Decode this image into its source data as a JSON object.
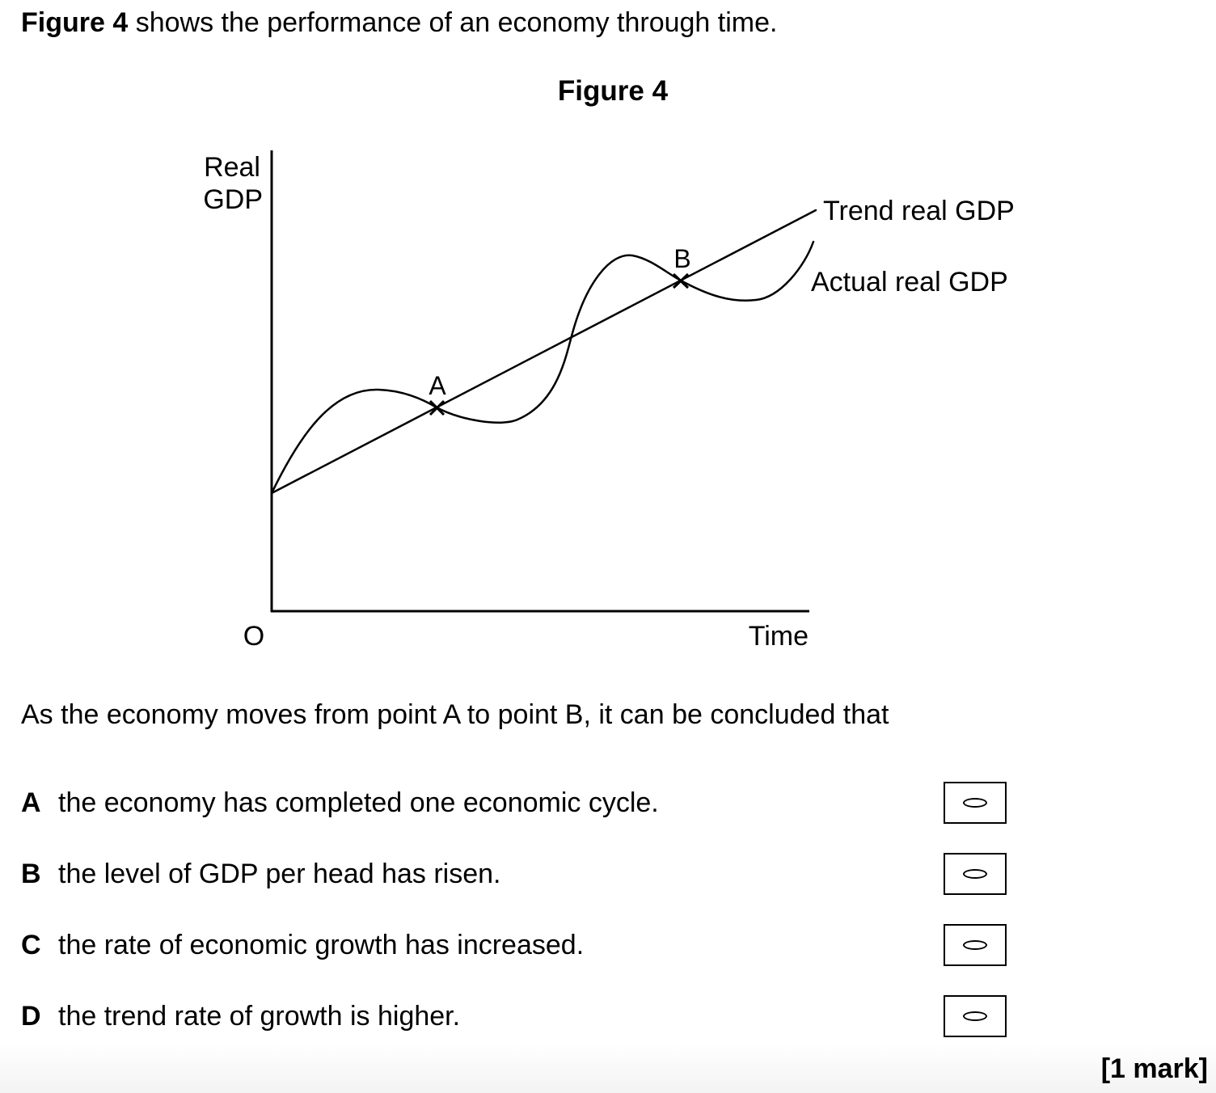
{
  "intro": {
    "figure_ref": "Figure 4",
    "text": "shows the performance of an economy through time."
  },
  "figure": {
    "title": "Figure 4",
    "y_label_line1": "Real",
    "y_label_line2": "GDP",
    "origin_label": "O",
    "x_label": "Time",
    "trend_label": "Trend real GDP",
    "actual_label": "Actual real GDP",
    "point_a_label": "A",
    "point_b_label": "B"
  },
  "chart_data": {
    "type": "line",
    "title": "Figure 4",
    "xlabel": "Time",
    "ylabel": "Real GDP",
    "series": [
      {
        "name": "Trend real GDP",
        "shape": "straight upward-sloping line"
      },
      {
        "name": "Actual real GDP",
        "shape": "cyclical curve oscillating around the trend"
      }
    ],
    "points": [
      {
        "label": "A",
        "on": "intersection of actual and trend real GDP"
      },
      {
        "label": "B",
        "on": "intersection of actual and trend real GDP"
      }
    ],
    "grid": false
  },
  "question": {
    "stem": "As the economy moves from point A to point B, it can be concluded that",
    "options": [
      {
        "letter": "A",
        "text": "the economy has completed one economic cycle."
      },
      {
        "letter": "B",
        "text": "the level of GDP per head has risen."
      },
      {
        "letter": "C",
        "text": "the rate of economic growth has increased."
      },
      {
        "letter": "D",
        "text": "the trend rate of growth is higher."
      }
    ],
    "marks": "[1 mark]"
  }
}
